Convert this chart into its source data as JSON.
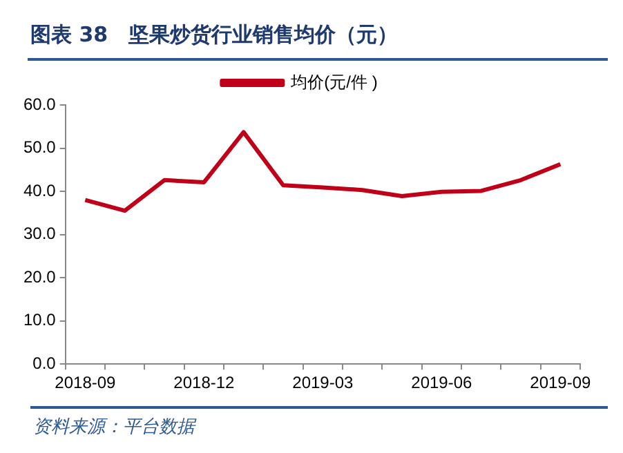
{
  "chart_data": {
    "type": "line",
    "title": "图表 38　坚果炒货行业销售均价（元）",
    "annotations": [
      "资料来源：平台数据"
    ],
    "categories": [
      "2018-09",
      null,
      null,
      "2018-12",
      null,
      null,
      "2019-03",
      null,
      null,
      "2019-06",
      null,
      null,
      "2019-09"
    ],
    "series": [
      {
        "name": "均价(元/件 )",
        "color": "#c00018",
        "values": [
          38.0,
          35.5,
          42.6,
          42.1,
          53.7,
          41.4,
          40.9,
          40.3,
          38.9,
          39.9,
          40.1,
          42.6,
          46.3
        ]
      }
    ],
    "ylim": [
      0,
      60
    ],
    "yticks": [
      {
        "value": 0,
        "label": "0.0"
      },
      {
        "value": 10,
        "label": "10.0"
      },
      {
        "value": 20,
        "label": "20.0"
      },
      {
        "value": 30,
        "label": "30.0"
      },
      {
        "value": 40,
        "label": "40.0"
      },
      {
        "value": 50,
        "label": "50.0"
      },
      {
        "value": 60,
        "label": "60.0"
      }
    ],
    "grid": false,
    "legend": "top",
    "marker": "none",
    "line_style": "solid"
  }
}
